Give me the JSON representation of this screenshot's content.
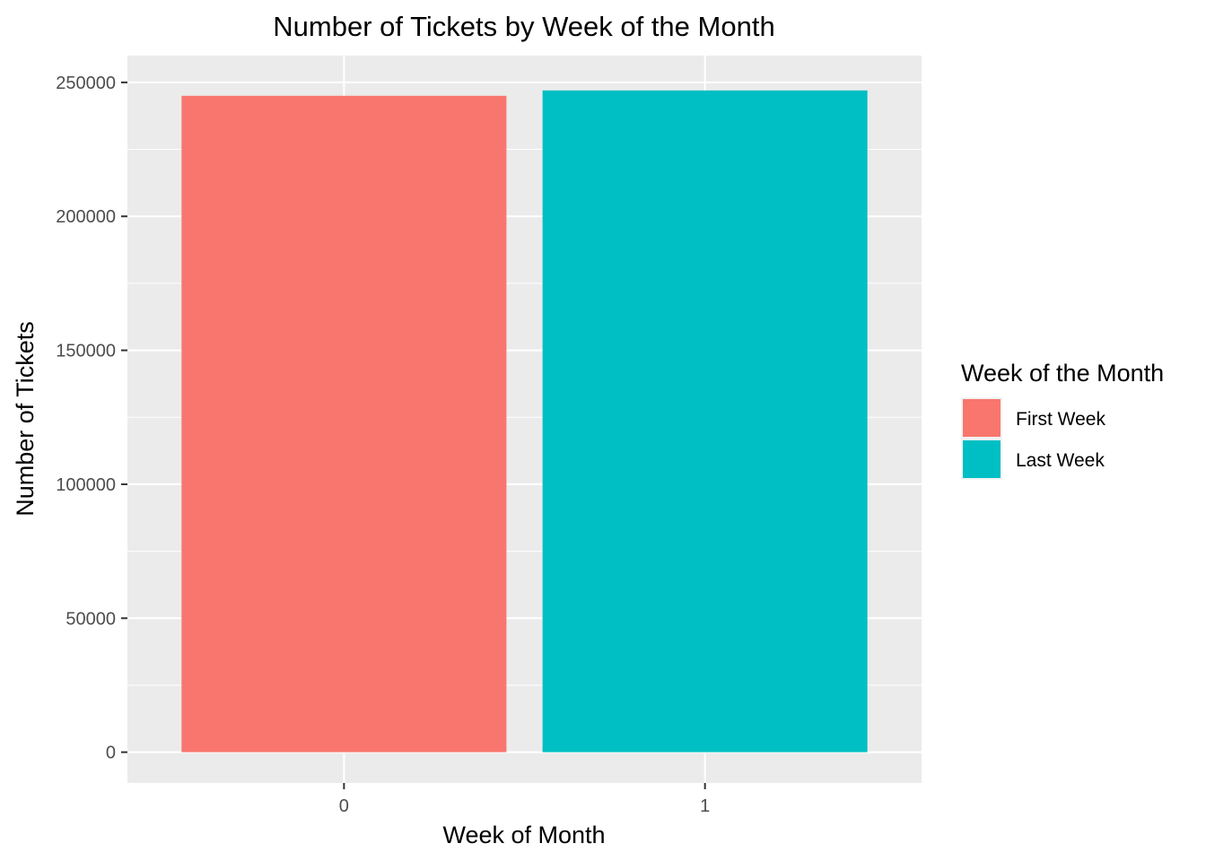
{
  "chart_data": {
    "type": "bar",
    "title": "Number of Tickets by Week of the Month",
    "xlabel": "Week of Month",
    "ylabel": "Number of Tickets",
    "categories": [
      "0",
      "1"
    ],
    "values": [
      245000,
      247000
    ],
    "fill_groups": [
      "First Week",
      "Last Week"
    ],
    "ylim": [
      -11500,
      260000
    ],
    "y_ticks": [
      0,
      50000,
      100000,
      150000,
      200000,
      250000
    ],
    "y_tick_labels": [
      "0",
      "50000",
      "100000",
      "150000",
      "200000",
      "250000"
    ],
    "grid": true,
    "legend": {
      "title": "Week of the Month",
      "position": "right",
      "entries": [
        {
          "label": "First Week",
          "color": "#F8766D"
        },
        {
          "label": "Last Week",
          "color": "#00BFC4"
        }
      ]
    },
    "colors": {
      "panel_background": "#EBEBEB",
      "grid_line": "#FFFFFF",
      "tick_text": "#4D4D4D",
      "tick_mark": "#333333"
    }
  }
}
